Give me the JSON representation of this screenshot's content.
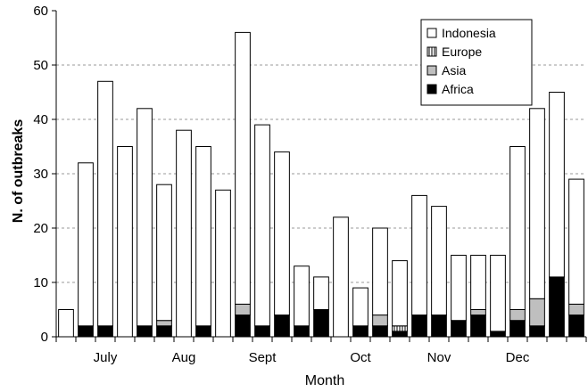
{
  "chart_data": {
    "type": "bar",
    "stacked": true,
    "title": "",
    "xlabel": "Month",
    "ylabel": "N. of outbreaks",
    "ylim": [
      0,
      60
    ],
    "yticks": [
      0,
      10,
      20,
      30,
      40,
      50,
      60
    ],
    "grid": "horizontal dashed",
    "legend_position": "top-right",
    "month_labels": [
      {
        "label": "July",
        "bar_index": 2
      },
      {
        "label": "Aug",
        "bar_index": 6
      },
      {
        "label": "Sept",
        "bar_index": 10
      },
      {
        "label": "Oct",
        "bar_index": 15
      },
      {
        "label": "Nov",
        "bar_index": 19
      },
      {
        "label": "Dec",
        "bar_index": 23
      }
    ],
    "series": [
      {
        "name": "Africa",
        "color": "#000000",
        "values": [
          0,
          2,
          2,
          0,
          2,
          2,
          0,
          2,
          0,
          4,
          2,
          4,
          2,
          5,
          0,
          2,
          2,
          1,
          4,
          4,
          3,
          4,
          1,
          3,
          2,
          11,
          4
        ]
      },
      {
        "name": "Asia",
        "color": "#bfbfbf",
        "values": [
          0,
          0,
          0,
          0,
          0,
          1,
          0,
          0,
          0,
          2,
          0,
          0,
          0,
          0,
          0,
          0,
          2,
          0,
          0,
          0,
          0,
          1,
          0,
          2,
          5,
          0,
          2
        ]
      },
      {
        "name": "Europe",
        "color": "#ffffff",
        "pattern": "vertical-hatch",
        "values": [
          0,
          0,
          0,
          0,
          0,
          0,
          0,
          0,
          0,
          0,
          0,
          0,
          0,
          0,
          0,
          0,
          0,
          1,
          0,
          0,
          0,
          0,
          0,
          0,
          0,
          0,
          0
        ]
      },
      {
        "name": "Indonesia",
        "color": "#ffffff",
        "values": [
          5,
          30,
          45,
          35,
          40,
          25,
          38,
          33,
          27,
          50,
          37,
          30,
          11,
          6,
          22,
          7,
          16,
          12,
          22,
          20,
          12,
          10,
          14,
          30,
          35,
          34,
          23
        ]
      }
    ],
    "legend_order": [
      "Indonesia",
      "Europe",
      "Asia",
      "Africa"
    ]
  }
}
